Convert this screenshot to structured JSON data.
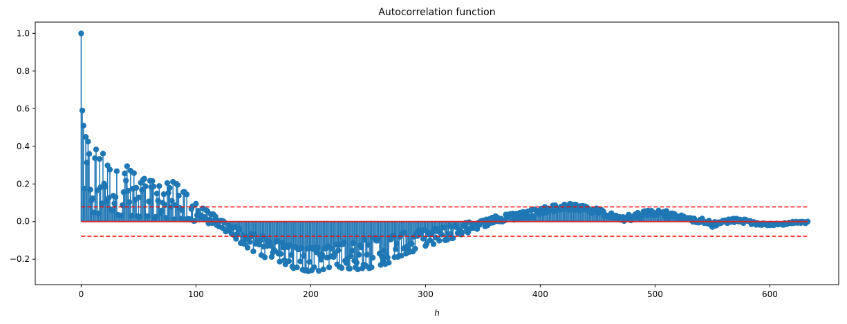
{
  "chart_data": {
    "type": "stem",
    "title": "Autocorrelation function",
    "xlabel": "h",
    "ylabel": "",
    "xlim": [
      -40,
      660
    ],
    "ylim": [
      -0.335,
      1.06
    ],
    "x_ticks": [
      0,
      100,
      200,
      300,
      400,
      500,
      600
    ],
    "y_ticks": [
      -0.2,
      0.0,
      0.2,
      0.4,
      0.6,
      0.8,
      1.0
    ],
    "grid": false,
    "legend": "none",
    "colors": {
      "stem": "#1f77b4",
      "baseline": "#d62728",
      "confidence_band": "#ff0000"
    },
    "confidence_band": {
      "upper": 0.078,
      "lower": -0.078,
      "x_range": [
        0,
        633
      ],
      "style": "dashed"
    },
    "baseline": {
      "y": 0.0,
      "x_range": [
        0,
        633
      ]
    },
    "acf_envelope": {
      "lag_count": 634,
      "exact": [
        [
          0,
          1.0
        ],
        [
          1,
          0.59
        ],
        [
          2,
          0.51
        ]
      ],
      "upper_envelope": [
        [
          3,
          0.46
        ],
        [
          10,
          0.4
        ],
        [
          20,
          0.36
        ],
        [
          30,
          0.28
        ],
        [
          40,
          0.3
        ],
        [
          50,
          0.24
        ],
        [
          60,
          0.22
        ],
        [
          70,
          0.2
        ],
        [
          80,
          0.22
        ],
        [
          90,
          0.16
        ],
        [
          100,
          0.1
        ],
        [
          110,
          0.06
        ],
        [
          120,
          0.02
        ],
        [
          130,
          -0.02
        ],
        [
          140,
          -0.04
        ],
        [
          150,
          -0.06
        ],
        [
          160,
          -0.08
        ],
        [
          170,
          -0.1
        ],
        [
          180,
          -0.12
        ],
        [
          190,
          -0.14
        ],
        [
          200,
          -0.14
        ],
        [
          210,
          -0.13
        ],
        [
          220,
          -0.12
        ],
        [
          230,
          -0.11
        ],
        [
          240,
          -0.1
        ],
        [
          250,
          -0.09
        ],
        [
          260,
          -0.08
        ],
        [
          270,
          -0.07
        ],
        [
          280,
          -0.06
        ],
        [
          290,
          -0.05
        ],
        [
          300,
          -0.04
        ],
        [
          310,
          -0.03
        ],
        [
          320,
          -0.02
        ],
        [
          330,
          -0.01
        ],
        [
          340,
          0.0
        ],
        [
          350,
          0.01
        ],
        [
          360,
          0.03
        ],
        [
          370,
          0.04
        ],
        [
          380,
          0.05
        ],
        [
          390,
          0.06
        ],
        [
          400,
          0.07
        ],
        [
          410,
          0.09
        ],
        [
          420,
          0.09
        ],
        [
          430,
          0.1
        ],
        [
          440,
          0.08
        ],
        [
          450,
          0.07
        ],
        [
          460,
          0.05
        ],
        [
          470,
          0.03
        ],
        [
          480,
          0.04
        ],
        [
          490,
          0.06
        ],
        [
          500,
          0.07
        ],
        [
          510,
          0.06
        ],
        [
          520,
          0.04
        ],
        [
          530,
          0.02
        ],
        [
          540,
          0.02
        ],
        [
          550,
          0.0
        ],
        [
          560,
          0.01
        ],
        [
          570,
          0.02
        ],
        [
          580,
          0.01
        ],
        [
          590,
          0.0
        ],
        [
          600,
          -0.01
        ],
        [
          610,
          -0.01
        ],
        [
          620,
          0.0
        ],
        [
          633,
          0.0
        ]
      ],
      "lower_envelope": [
        [
          3,
          0.05
        ],
        [
          10,
          0.04
        ],
        [
          20,
          0.04
        ],
        [
          30,
          0.03
        ],
        [
          40,
          0.03
        ],
        [
          50,
          0.02
        ],
        [
          60,
          0.02
        ],
        [
          70,
          0.02
        ],
        [
          80,
          0.01
        ],
        [
          90,
          0.01
        ],
        [
          100,
          0.0
        ],
        [
          110,
          -0.01
        ],
        [
          120,
          -0.03
        ],
        [
          130,
          -0.07
        ],
        [
          140,
          -0.12
        ],
        [
          150,
          -0.16
        ],
        [
          160,
          -0.19
        ],
        [
          170,
          -0.21
        ],
        [
          180,
          -0.24
        ],
        [
          190,
          -0.26
        ],
        [
          200,
          -0.27
        ],
        [
          210,
          -0.26
        ],
        [
          220,
          -0.24
        ],
        [
          230,
          -0.25
        ],
        [
          240,
          -0.26
        ],
        [
          250,
          -0.25
        ],
        [
          260,
          -0.24
        ],
        [
          270,
          -0.22
        ],
        [
          280,
          -0.18
        ],
        [
          290,
          -0.16
        ],
        [
          300,
          -0.13
        ],
        [
          310,
          -0.12
        ],
        [
          320,
          -0.1
        ],
        [
          330,
          -0.08
        ],
        [
          340,
          -0.05
        ],
        [
          350,
          -0.03
        ],
        [
          360,
          -0.01
        ],
        [
          370,
          0.0
        ],
        [
          380,
          0.01
        ],
        [
          390,
          0.02
        ],
        [
          400,
          0.03
        ],
        [
          410,
          0.05
        ],
        [
          420,
          0.06
        ],
        [
          430,
          0.06
        ],
        [
          440,
          0.05
        ],
        [
          450,
          0.04
        ],
        [
          460,
          0.02
        ],
        [
          470,
          0.0
        ],
        [
          480,
          0.0
        ],
        [
          490,
          0.02
        ],
        [
          500,
          0.03
        ],
        [
          510,
          0.02
        ],
        [
          520,
          0.01
        ],
        [
          530,
          0.0
        ],
        [
          540,
          -0.01
        ],
        [
          550,
          -0.03
        ],
        [
          560,
          -0.01
        ],
        [
          570,
          -0.01
        ],
        [
          580,
          -0.01
        ],
        [
          590,
          -0.02
        ],
        [
          600,
          -0.02
        ],
        [
          610,
          -0.02
        ],
        [
          620,
          -0.01
        ],
        [
          633,
          0.0
        ]
      ]
    }
  }
}
